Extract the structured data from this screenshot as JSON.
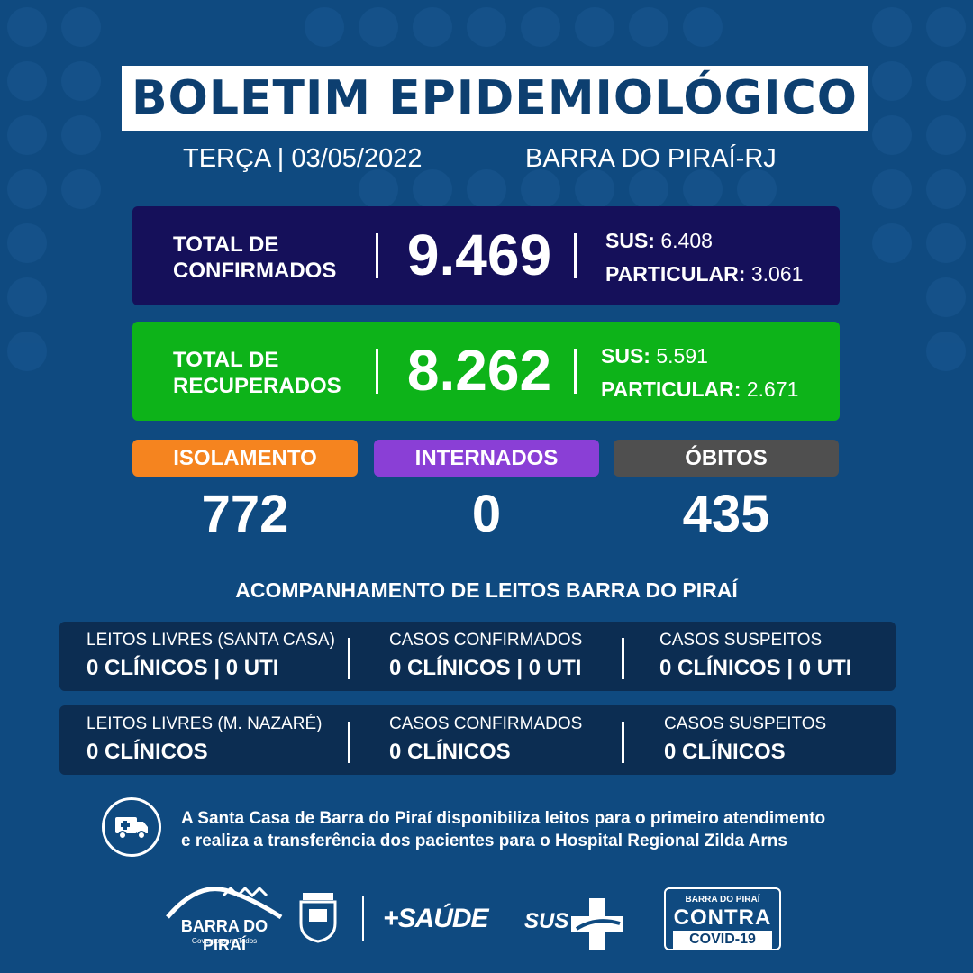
{
  "header": {
    "title": "BOLETIM EPIDEMIOLÓGICO",
    "date": "TERÇA | 03/05/2022",
    "city": "BARRA DO PIRAÍ-RJ"
  },
  "confirmed": {
    "label_line1": "TOTAL DE",
    "label_line2": "CONFIRMADOS",
    "total": "9.469",
    "sus_label": "SUS:",
    "sus_value": "6.408",
    "private_label": "PARTICULAR:",
    "private_value": "3.061"
  },
  "recovered": {
    "label_line1": "TOTAL DE",
    "label_line2": "RECUPERADOS",
    "total": "8.262",
    "sus_label": "SUS:",
    "sus_value": "5.591",
    "private_label": "PARTICULAR:",
    "private_value": "2.671"
  },
  "stats": {
    "isolation_label": "ISOLAMENTO",
    "isolation_value": "772",
    "hospitalized_label": "INTERNADOS",
    "hospitalized_value": "0",
    "deaths_label": "ÓBITOS",
    "deaths_value": "435"
  },
  "beds": {
    "title": "ACOMPANHAMENTO DE LEITOS BARRA DO PIRAÍ",
    "row1": [
      {
        "heading": "LEITOS LIVRES (SANTA CASA)",
        "value": "0 CLÍNICOS | 0 UTI"
      },
      {
        "heading": "CASOS CONFIRMADOS",
        "value": "0 CLÍNICOS | 0 UTI"
      },
      {
        "heading": "CASOS SUSPEITOS",
        "value": "0 CLÍNICOS | 0 UTI"
      }
    ],
    "row2": [
      {
        "heading": "LEITOS LIVRES (M. NAZARÉ)",
        "value": "0 CLÍNICOS"
      },
      {
        "heading": "CASOS CONFIRMADOS",
        "value": "0 CLÍNICOS"
      },
      {
        "heading": "CASOS SUSPEITOS",
        "value": "0 CLÍNICOS"
      }
    ]
  },
  "notice": {
    "icon": "ambulance-icon",
    "line1": "A Santa Casa de Barra do Piraí disponibiliza leitos para o primeiro atendimento",
    "line2": "e realiza a transferência dos pacientes para o Hospital Regional Zilda Arns"
  },
  "footer": {
    "barra_name": "BARRA DO PIRAÍ",
    "barra_tagline": "Governo para Todos",
    "saude": "+SAÚDE",
    "sus": "SUS",
    "covid_line1": "BARRA DO PIRAÍ",
    "covid_line2": "CONTRA",
    "covid_line3": "COVID-19"
  },
  "colors": {
    "background": "#0f4a80",
    "confirmed_card": "#15105a",
    "recovered_card": "#0db319",
    "isolation": "#f5841f",
    "hospitalized": "#8a3fd6",
    "deaths": "#4f4f4f",
    "beds_panel": "#0c2d52"
  }
}
